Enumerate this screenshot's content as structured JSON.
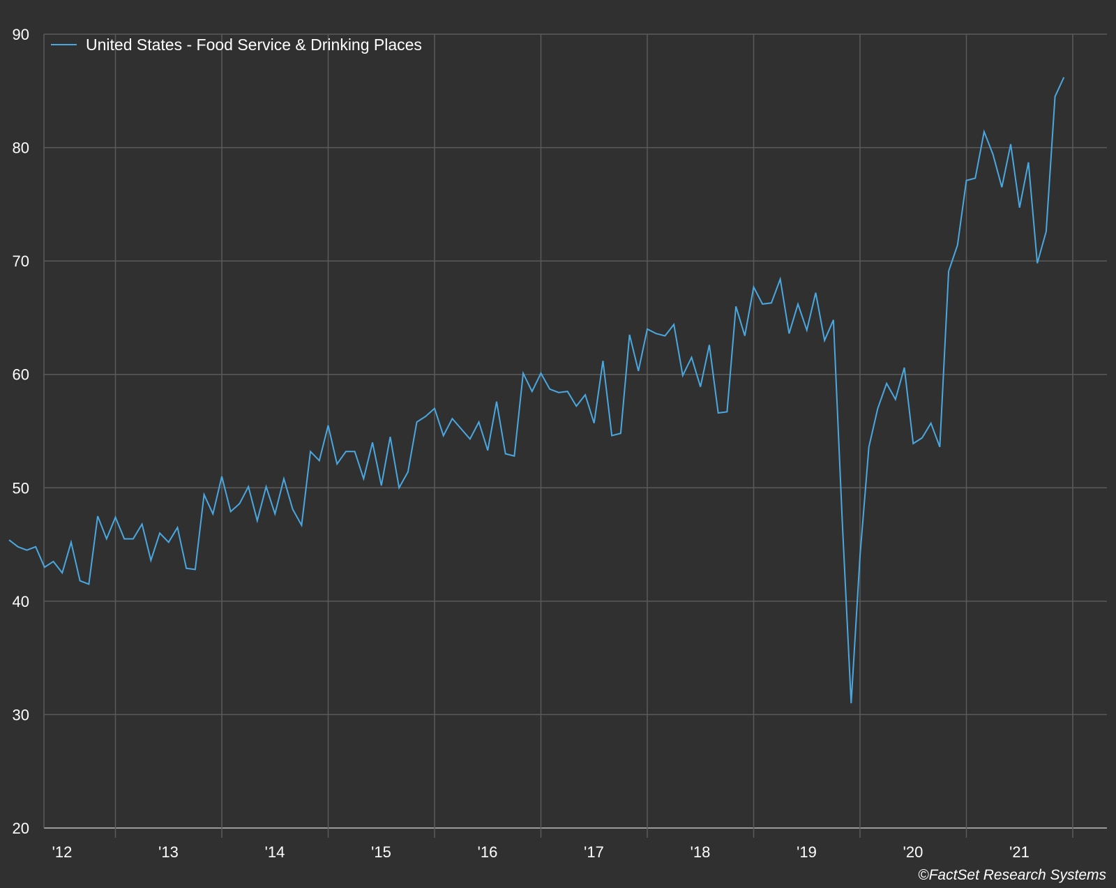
{
  "chart_data": {
    "type": "line",
    "title": "",
    "xlabel": "",
    "ylabel": "",
    "ylim": [
      20,
      90
    ],
    "yticks": [
      20,
      30,
      40,
      50,
      60,
      70,
      80,
      90
    ],
    "xticks": [
      "'12",
      "'13",
      "'14",
      "'15",
      "'16",
      "'17",
      "'18",
      "'19",
      "'20",
      "'21"
    ],
    "grid": true,
    "legend_position": "top-left",
    "colors": {
      "background": "#303030",
      "grid": "#5a5a5a",
      "line": "#4aa8e0",
      "text": "#ffffff"
    },
    "x_start": "2012-01",
    "x_end": "2021-12",
    "series": [
      {
        "name": "United States - Food Service & Drinking Places",
        "values": [
          45.4,
          44.8,
          44.5,
          44.8,
          43.0,
          43.5,
          42.5,
          45.2,
          41.8,
          41.5,
          47.5,
          45.5,
          47.4,
          45.5,
          45.5,
          46.8,
          43.6,
          46.0,
          45.2,
          46.5,
          42.9,
          42.8,
          49.4,
          47.7,
          51.0,
          47.9,
          48.6,
          50.1,
          47.1,
          50.1,
          47.7,
          50.8,
          48.1,
          46.7,
          53.2,
          52.4,
          55.5,
          52.1,
          53.2,
          53.2,
          50.8,
          54.0,
          50.2,
          54.5,
          50.0,
          51.4,
          55.8,
          56.3,
          57.0,
          54.6,
          56.1,
          55.2,
          54.3,
          55.8,
          53.3,
          57.6,
          53.0,
          52.8,
          60.1,
          58.5,
          60.1,
          58.7,
          58.4,
          58.5,
          57.2,
          58.2,
          55.7,
          61.2,
          54.6,
          54.8,
          63.5,
          60.3,
          64.0,
          63.6,
          63.4,
          64.4,
          59.9,
          61.5,
          58.9,
          62.6,
          56.6,
          56.7,
          66.0,
          63.4,
          67.7,
          66.2,
          66.3,
          68.4,
          63.6,
          66.2,
          63.9,
          67.2,
          63.0,
          64.8,
          47.0,
          31.0,
          44.0,
          53.6,
          57.0,
          59.2,
          57.8,
          60.6,
          53.9,
          54.4,
          55.7,
          53.6,
          69.1,
          71.4,
          77.1,
          77.3,
          81.4,
          79.4,
          76.5,
          80.3,
          74.7,
          78.7,
          69.8,
          72.6,
          84.5,
          86.2
        ]
      }
    ]
  },
  "credit": "©FactSet Research Systems"
}
